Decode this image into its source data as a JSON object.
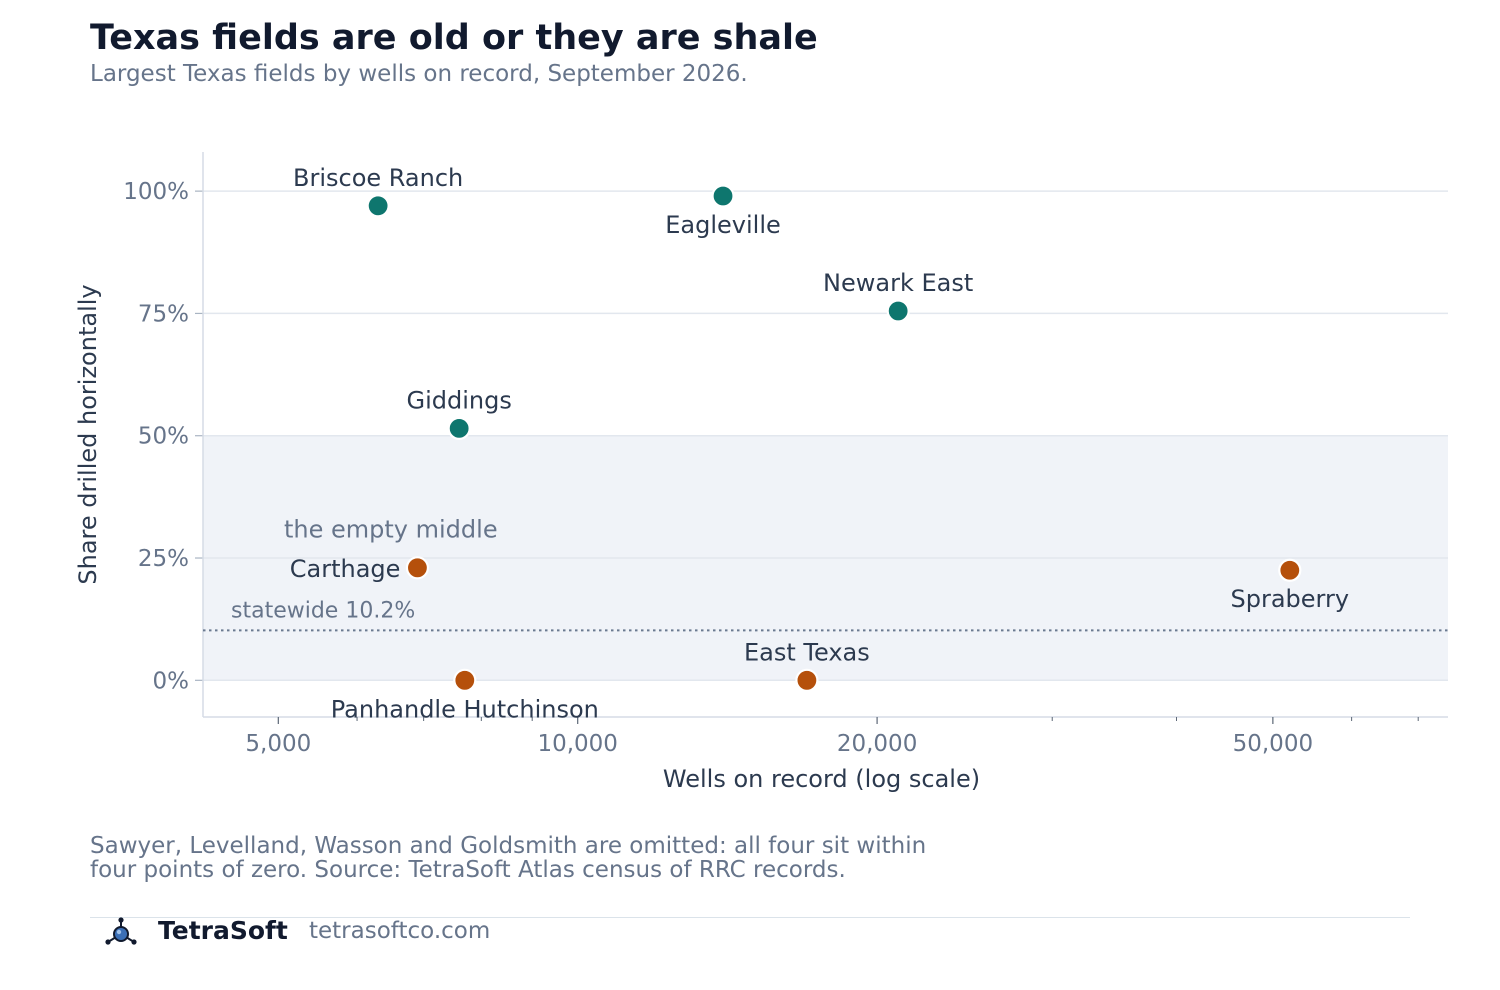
{
  "header": {
    "title": "Texas fields are old or they are shale",
    "subtitle": "Largest Texas fields by wells on record, September 2026."
  },
  "footer": {
    "note_line1": "Sawyer, Levelland, Wasson and Goldsmith are omitted: all four sit within",
    "note_line2": "four points of zero. Source: TetraSoft Atlas census of RRC records.",
    "brand": "TetraSoft",
    "site": "tetrasoftco.com"
  },
  "chart_data": {
    "type": "scatter",
    "title": "Texas fields are old or they are shale",
    "subtitle": "Largest Texas fields by wells on record, September 2026.",
    "xlabel": "Wells on record (log scale)",
    "ylabel": "Share drilled horizontally",
    "x_scale": "log",
    "xlim": [
      4200,
      75000
    ],
    "ylim": [
      -7.5,
      108
    ],
    "x_ticks": [
      {
        "value": 5000,
        "label": "5,000"
      },
      {
        "value": 10000,
        "label": "10,000"
      },
      {
        "value": 20000,
        "label": "20,000"
      },
      {
        "value": 50000,
        "label": "50,000"
      }
    ],
    "x_minor_ticks": [
      6000,
      7000,
      8000,
      9000,
      30000,
      40000,
      60000,
      70000
    ],
    "y_ticks": [
      {
        "value": 0,
        "label": "0%"
      },
      {
        "value": 25,
        "label": "25%"
      },
      {
        "value": 50,
        "label": "50%"
      },
      {
        "value": 75,
        "label": "75%"
      },
      {
        "value": 100,
        "label": "100%"
      }
    ],
    "grid": "horizontal",
    "shaded_band": {
      "y_from": 0,
      "y_to": 50,
      "label": "the empty middle"
    },
    "reference_line": {
      "y": 10.2,
      "label": "statewide 10.2%"
    },
    "colors": {
      "mostly_horizontal": "#0e766e",
      "mostly_vertical": "#b5500b"
    },
    "points": [
      {
        "name": "Briscoe Ranch",
        "x": 6300,
        "y": 97,
        "group": "mostly_horizontal",
        "label_pos": "above"
      },
      {
        "name": "Eagleville",
        "x": 14000,
        "y": 99,
        "group": "mostly_horizontal",
        "label_pos": "below"
      },
      {
        "name": "Newark East",
        "x": 21000,
        "y": 75.5,
        "group": "mostly_horizontal",
        "label_pos": "above"
      },
      {
        "name": "Giddings",
        "x": 7600,
        "y": 51.5,
        "group": "mostly_horizontal",
        "label_pos": "above"
      },
      {
        "name": "Carthage",
        "x": 6900,
        "y": 23,
        "group": "mostly_vertical",
        "label_pos": "left"
      },
      {
        "name": "Spraberry",
        "x": 52000,
        "y": 22.5,
        "group": "mostly_vertical",
        "label_pos": "below"
      },
      {
        "name": "East Texas",
        "x": 17000,
        "y": 0,
        "group": "mostly_vertical",
        "label_pos": "above"
      },
      {
        "name": "Panhandle Hutchinson",
        "x": 7700,
        "y": 0,
        "group": "mostly_vertical",
        "label_pos": "below"
      }
    ]
  }
}
